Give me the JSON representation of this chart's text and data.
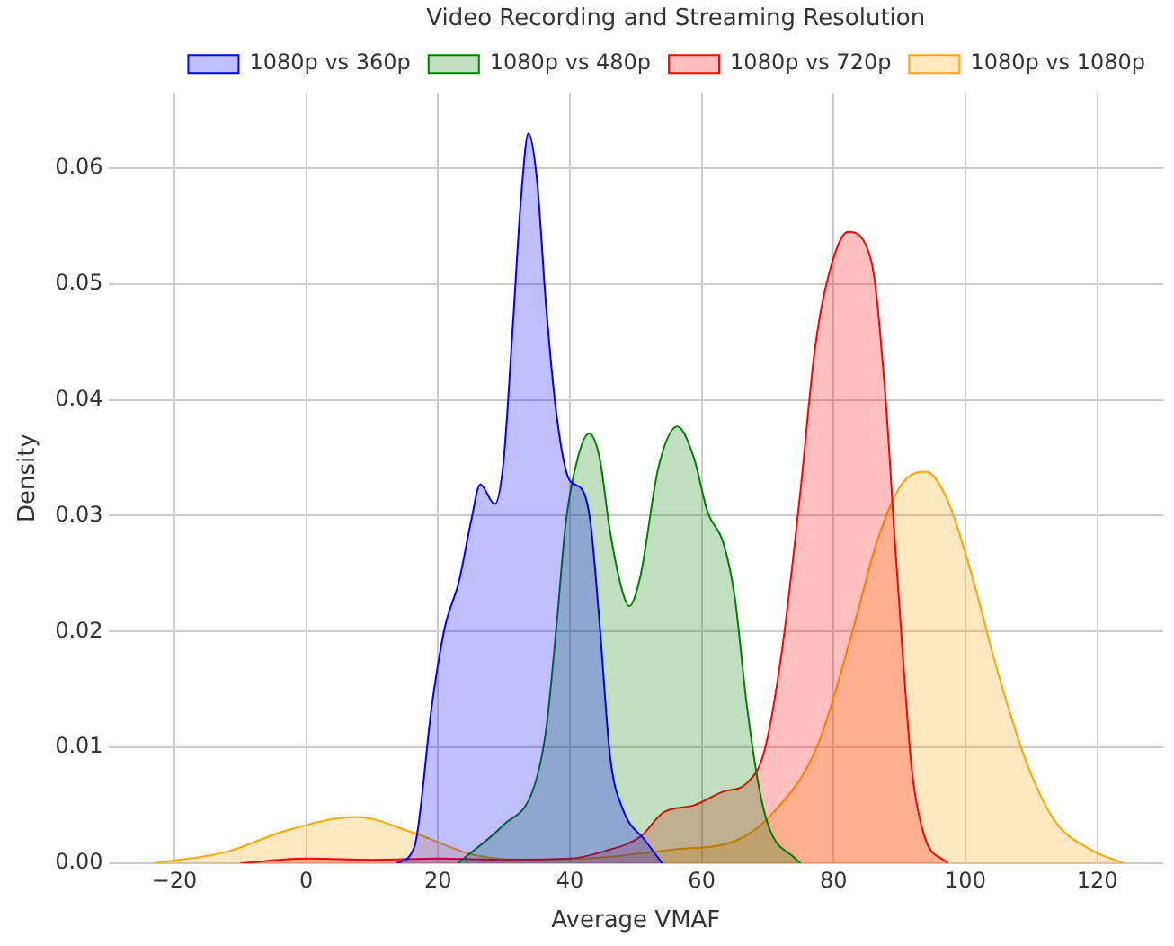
{
  "chart_data": {
    "type": "area",
    "xlabel": "Average VMAF",
    "ylabel": "Density",
    "legend_title": "Video Recording and Streaming Resolution",
    "xlim": [
      -30,
      130
    ],
    "ylim": [
      0,
      0.0665
    ],
    "xticks": [
      {
        "value": -20,
        "label": "−20"
      },
      0,
      20,
      40,
      60,
      80,
      100,
      120
    ],
    "yticks": [
      {
        "value": 0,
        "label": "0.00"
      },
      {
        "value": 0.01,
        "label": "0.01"
      },
      {
        "value": 0.02,
        "label": "0.02"
      },
      {
        "value": 0.03,
        "label": "0.03"
      },
      {
        "value": 0.04,
        "label": "0.04"
      },
      {
        "value": 0.05,
        "label": "0.05"
      },
      {
        "value": 0.06,
        "label": "0.06"
      }
    ],
    "grid": true,
    "legend": "top right",
    "marker": "none",
    "series": [
      {
        "name": "1080p vs 360p",
        "color": "#0000ff",
        "x": [
          13.7,
          16.4,
          19.1,
          21,
          23.2,
          25,
          26.4,
          28.6,
          29.9,
          31.3,
          32.6,
          33.7,
          35,
          36.4,
          38,
          39.9,
          41.8,
          43.1,
          44.5,
          46.1,
          48,
          51.5,
          54
        ],
        "values": [
          0,
          0.0014,
          0.0138,
          0.0203,
          0.0244,
          0.0295,
          0.0327,
          0.031,
          0.0345,
          0.046,
          0.0575,
          0.063,
          0.059,
          0.048,
          0.0386,
          0.0331,
          0.0323,
          0.0295,
          0.0207,
          0.0092,
          0.0047,
          0.0019,
          0
        ]
      },
      {
        "name": "1080p vs 480p",
        "color": "#008000",
        "x": [
          23,
          29.9,
          34.5,
          36.4,
          38,
          39.4,
          41.2,
          42.9,
          44.5,
          46.1,
          48,
          49,
          50.7,
          53.4,
          56.3,
          58.8,
          60.9,
          63.3,
          65,
          66.8,
          68.7,
          70.4,
          74,
          75
        ],
        "values": [
          0,
          0.0033,
          0.0065,
          0.0116,
          0.0207,
          0.0295,
          0.035,
          0.0371,
          0.035,
          0.0286,
          0.0234,
          0.0222,
          0.0248,
          0.0341,
          0.0377,
          0.035,
          0.0303,
          0.0276,
          0.023,
          0.0138,
          0.0065,
          0.0028,
          0.0005,
          0
        ]
      },
      {
        "name": "1080p vs 720p",
        "color": "#ff0000",
        "x": [
          -10,
          0,
          10,
          20,
          30,
          40,
          45,
          50.7,
          54.2,
          58.8,
          63.3,
          66.8,
          69.5,
          72.2,
          75,
          77.1,
          79,
          82.2,
          85.7,
          87.9,
          89.2,
          90.6,
          91.9,
          93.8,
          97.3
        ],
        "values": [
          0,
          0.0004,
          0.0003,
          0.0004,
          0.0003,
          0.0004,
          0.001,
          0.0023,
          0.0044,
          0.005,
          0.0062,
          0.0069,
          0.0097,
          0.0185,
          0.0323,
          0.0441,
          0.0502,
          0.0545,
          0.052,
          0.04,
          0.0286,
          0.0171,
          0.0079,
          0.0023,
          0
        ]
      },
      {
        "name": "1080p vs 1080p",
        "color": "#ffa500",
        "x": [
          -23,
          -12,
          -3.2,
          7.5,
          16.4,
          25.6,
          35,
          45,
          56,
          65,
          70.4,
          77.6,
          83,
          86.5,
          90.3,
          94,
          97.3,
          101,
          104.6,
          109.2,
          113.5,
          118.9,
          124
        ],
        "values": [
          0,
          0.001,
          0.0028,
          0.004,
          0.0026,
          0.0007,
          0.0003,
          0.0005,
          0.0012,
          0.0019,
          0.0041,
          0.0102,
          0.0203,
          0.0276,
          0.0327,
          0.0338,
          0.0313,
          0.0248,
          0.0171,
          0.0088,
          0.0037,
          0.0012,
          0
        ]
      }
    ]
  }
}
